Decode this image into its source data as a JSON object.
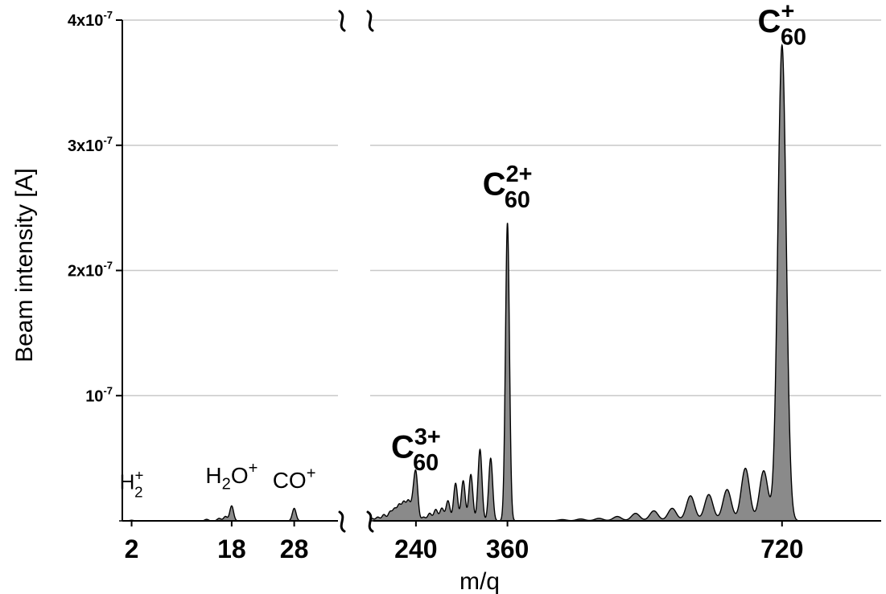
{
  "chart_data": {
    "type": "area",
    "xlabel": "m/q",
    "ylabel": "Beam intensity [A]",
    "ylim": [
      0,
      4e-07
    ],
    "y_ticks": [
      {
        "value": 1e-07,
        "base": "10",
        "exp": "-7"
      },
      {
        "value": 2e-07,
        "base": "2x10",
        "exp": "-7"
      },
      {
        "value": 3e-07,
        "base": "3x10",
        "exp": "-7"
      },
      {
        "value": 4e-07,
        "base": "4x10",
        "exp": "-7"
      }
    ],
    "grid": true,
    "axis_break": true,
    "panels": [
      {
        "name": "low-mass",
        "xlim": [
          0,
          35
        ],
        "x_ticks": [
          2,
          18,
          28
        ]
      },
      {
        "name": "high-mass",
        "xlim": [
          180,
          850
        ],
        "x_ticks": [
          240,
          360,
          720
        ]
      }
    ],
    "peaks_low": [
      {
        "x": 2,
        "y": 5e-10
      },
      {
        "x": 14,
        "y": 1.2e-09
      },
      {
        "x": 16,
        "y": 2e-09
      },
      {
        "x": 17,
        "y": 3.5e-09
      },
      {
        "x": 18,
        "y": 1.2e-08
      },
      {
        "x": 28,
        "y": 1e-08
      }
    ],
    "peaks_high": [
      {
        "x": 182,
        "y": 2e-09
      },
      {
        "x": 190,
        "y": 3e-09
      },
      {
        "x": 198,
        "y": 5e-09
      },
      {
        "x": 206,
        "y": 7e-09
      },
      {
        "x": 212,
        "y": 9e-09
      },
      {
        "x": 218,
        "y": 1.2e-08
      },
      {
        "x": 224,
        "y": 1.4e-08
      },
      {
        "x": 230,
        "y": 1.5e-08
      },
      {
        "x": 236,
        "y": 1.3e-08
      },
      {
        "x": 240,
        "y": 3.6e-08
      },
      {
        "x": 250,
        "y": 3e-09
      },
      {
        "x": 258,
        "y": 6e-09
      },
      {
        "x": 266,
        "y": 9e-09
      },
      {
        "x": 274,
        "y": 1e-08
      },
      {
        "x": 282,
        "y": 1.6e-08
      },
      {
        "x": 292,
        "y": 3e-08
      },
      {
        "x": 302,
        "y": 3.2e-08
      },
      {
        "x": 312,
        "y": 3.7e-08
      },
      {
        "x": 324,
        "y": 5.7e-08
      },
      {
        "x": 338,
        "y": 5e-08
      },
      {
        "x": 360,
        "y": 2.38e-07
      },
      {
        "x": 432,
        "y": 1e-09
      },
      {
        "x": 456,
        "y": 1.5e-09
      },
      {
        "x": 480,
        "y": 2e-09
      },
      {
        "x": 504,
        "y": 3.5e-09
      },
      {
        "x": 528,
        "y": 6e-09
      },
      {
        "x": 552,
        "y": 8e-09
      },
      {
        "x": 576,
        "y": 1e-08
      },
      {
        "x": 600,
        "y": 2e-08
      },
      {
        "x": 624,
        "y": 2.1e-08
      },
      {
        "x": 648,
        "y": 2.5e-08
      },
      {
        "x": 672,
        "y": 4.2e-08
      },
      {
        "x": 696,
        "y": 4e-08
      },
      {
        "x": 720,
        "y": 3.8e-07
      }
    ],
    "annotations": [
      {
        "id": "h2",
        "text": "H",
        "sub": "2",
        "sup": "+",
        "x": 2,
        "y": 1.5e-08,
        "panel": 0,
        "size": 26
      },
      {
        "id": "h2o",
        "text": "H",
        "sub": "2",
        "post": "O",
        "sup": "+",
        "x": 18,
        "y": 2e-08,
        "panel": 0,
        "size": 28
      },
      {
        "id": "co",
        "text": "CO",
        "sup": "+",
        "x": 28,
        "y": 1.6e-08,
        "panel": 0,
        "size": 28
      },
      {
        "id": "c60-3",
        "text": "C",
        "sub": "60",
        "sup": "3+",
        "x": 240,
        "y": 4e-08,
        "panel": 1,
        "size": 40
      },
      {
        "id": "c60-2",
        "text": "C",
        "sub": "60",
        "sup": "2+",
        "x": 360,
        "y": 2.5e-07,
        "panel": 1,
        "size": 40
      },
      {
        "id": "c60-1",
        "text": "C",
        "sub": "60",
        "sup": "+",
        "x": 720,
        "y": 3.8e-07,
        "panel": 1,
        "size": 40
      }
    ]
  }
}
